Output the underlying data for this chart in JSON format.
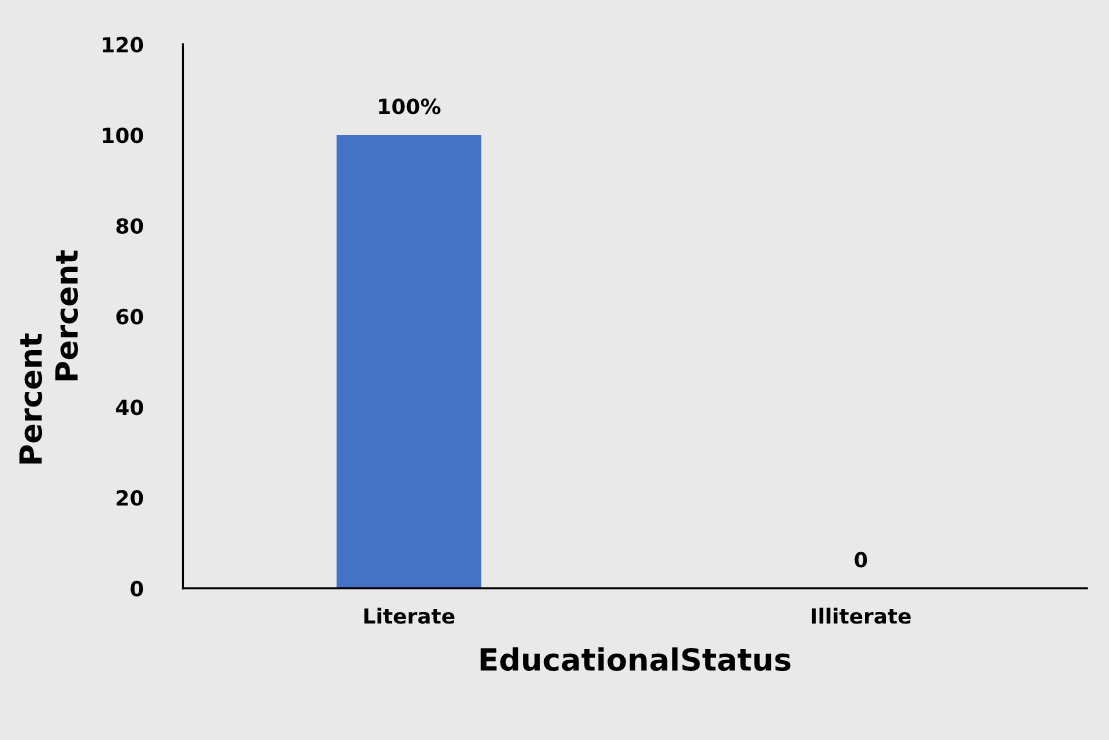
{
  "chart_data": {
    "type": "bar",
    "xlabel": "EducationalStatus",
    "ylabel": "Percent",
    "annotations": [
      "Percent"
    ],
    "categories": [
      "Literate",
      "Illiterate"
    ],
    "values": [
      100,
      0
    ],
    "value_labels": [
      "100%",
      "0"
    ],
    "color": "#4472c4",
    "ylim": [
      0,
      120
    ],
    "yticks": [
      0,
      20,
      40,
      60,
      80,
      100,
      120
    ],
    "grid": false,
    "legend": false
  }
}
